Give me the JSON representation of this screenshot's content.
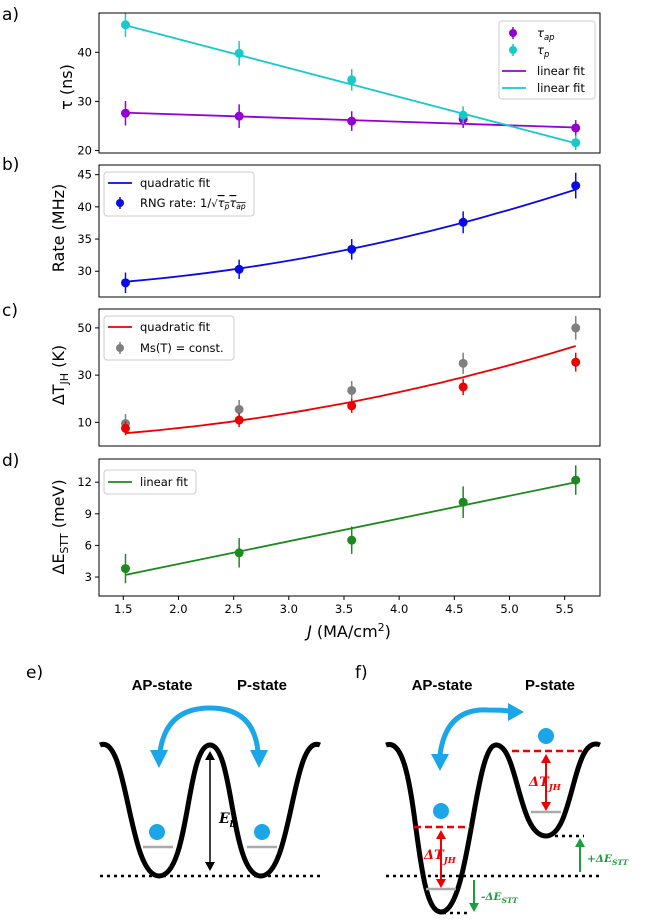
{
  "chart_data": [
    {
      "type": "scatter",
      "panel": "a)",
      "ylabel": "τ (ns)",
      "ylim": [
        19.5,
        48
      ],
      "yticks": [
        20,
        30,
        40
      ],
      "x": [
        1.52,
        2.55,
        3.57,
        4.58,
        5.6
      ],
      "series": [
        {
          "name": "τap",
          "label_main": "τ",
          "label_sub": "ap",
          "color": "#9400d3",
          "values": [
            27.6,
            27.0,
            26.0,
            26.4,
            24.6
          ],
          "errors": [
            2.5,
            2.4,
            2.0,
            1.8,
            1.6
          ]
        },
        {
          "name": "τp",
          "label_main": "τ",
          "label_sub": "p",
          "color": "#17c9c9",
          "values": [
            45.6,
            39.8,
            34.4,
            27.2,
            21.6
          ],
          "errors": [
            2.5,
            2.5,
            2.2,
            1.8,
            1.5
          ]
        }
      ],
      "fits": [
        {
          "name": "linear fit",
          "color": "#9400d3",
          "x": [
            1.52,
            5.6
          ],
          "y": [
            27.7,
            24.7
          ]
        },
        {
          "name": "linear fit",
          "color": "#17c9c9",
          "x": [
            1.52,
            5.6
          ],
          "y": [
            45.5,
            21.5
          ]
        }
      ],
      "legend_position": "top-right"
    },
    {
      "type": "scatter",
      "panel": "b)",
      "ylabel": "Rate (MHz)",
      "ylim": [
        26,
        46.5
      ],
      "yticks": [
        30,
        35,
        40,
        45
      ],
      "x": [
        1.52,
        2.55,
        3.57,
        4.58,
        5.6
      ],
      "series": [
        {
          "name": "RNG rate: 1/√(τp τap)",
          "label_main": "RNG rate: 1/",
          "color": "#0a0ae6",
          "values": [
            28.2,
            30.3,
            33.4,
            37.6,
            43.3
          ],
          "errors": [
            1.6,
            1.5,
            1.6,
            1.7,
            2.0
          ]
        }
      ],
      "fits": [
        {
          "name": "quadratic fit",
          "color": "#0a0ae6",
          "quad": [
            0.5,
            -0.05,
            27.3
          ]
        }
      ],
      "legend_position": "top-left"
    },
    {
      "type": "scatter",
      "panel": "c)",
      "ylabel_main": "ΔT",
      "ylabel_sub": "JH",
      "ylabel_unit": " (K)",
      "ylim": [
        0,
        58
      ],
      "yticks": [
        10,
        30,
        50
      ],
      "x": [
        1.52,
        2.55,
        3.57,
        4.58,
        5.6
      ],
      "series": [
        {
          "name": "Ms(T) = const.",
          "color": "#7f7f7f",
          "values": [
            9.5,
            15.5,
            23.5,
            35,
            50
          ],
          "errors": [
            4,
            4,
            4,
            4.5,
            5
          ]
        },
        {
          "name": "ΔTJH",
          "color": "#ee0000",
          "values": [
            7.5,
            11,
            17,
            25,
            35.5
          ],
          "errors": [
            3,
            3,
            3,
            3.5,
            4
          ]
        }
      ],
      "fits": [
        {
          "name": "quadratic fit",
          "color": "#ee0000",
          "quad": [
            1.27,
            0,
            2.5
          ]
        }
      ],
      "legend_position": "top-left"
    },
    {
      "type": "scatter",
      "panel": "d)",
      "ylabel_main": "ΔE",
      "ylabel_sub": "STT",
      "ylabel_unit": " (meV)",
      "ylim": [
        1.2,
        14.2
      ],
      "yticks": [
        3,
        6,
        9,
        12
      ],
      "xlabel_main": "J",
      "xlabel_unit": " (MA/cm",
      "xlabel_sup": "2",
      "xlim": [
        1.28,
        5.82
      ],
      "xticks": [
        "1.5",
        "2.0",
        "2.5",
        "3.0",
        "3.5",
        "4.0",
        "4.5",
        "5.0",
        "5.5"
      ],
      "x": [
        1.52,
        2.55,
        3.57,
        4.58,
        5.6
      ],
      "series": [
        {
          "name": "ΔESTT",
          "color": "#1c8a1c",
          "values": [
            3.8,
            5.3,
            6.5,
            10.1,
            12.2
          ],
          "errors": [
            1.4,
            1.4,
            1.3,
            1.5,
            1.4
          ]
        }
      ],
      "fits": [
        {
          "name": "linear fit",
          "color": "#1c8a1c",
          "x": [
            1.52,
            5.6
          ],
          "y": [
            3.2,
            12.0
          ]
        }
      ],
      "legend_position": "top-left"
    }
  ],
  "diagram": {
    "e": {
      "panel_label": "e)",
      "left_state": "AP-state",
      "right_state": "P-state",
      "barrier_label": "E",
      "barrier_sub": "b"
    },
    "f": {
      "panel_label": "f)",
      "left_state": "AP-state",
      "right_state": "P-state",
      "jh_label": "ΔT",
      "jh_sub": "JH",
      "stt_plus": "+ΔE",
      "stt_minus": "-ΔE",
      "stt_sub": "STT"
    },
    "colors": {
      "ball": "#1aa6e8",
      "arrow": "#1aa6e8",
      "jh": "#ee0000",
      "stt": "#1c9e3c"
    }
  }
}
